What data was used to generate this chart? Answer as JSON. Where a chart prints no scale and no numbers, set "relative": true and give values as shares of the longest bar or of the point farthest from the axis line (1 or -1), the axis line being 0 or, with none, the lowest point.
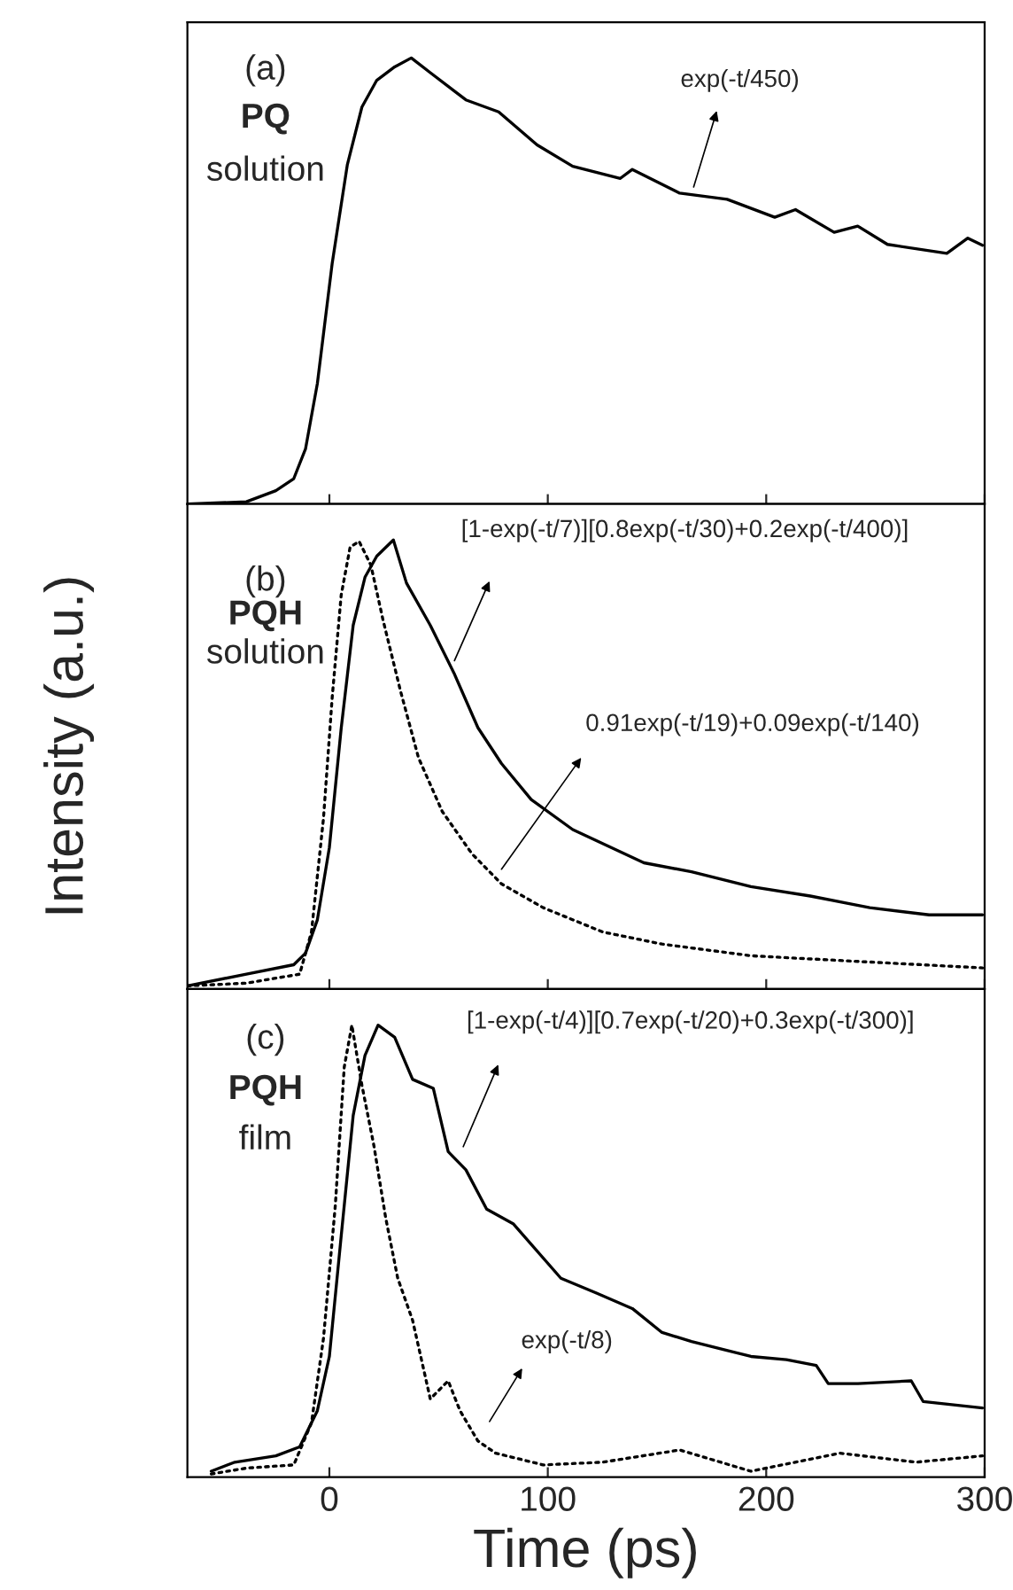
{
  "chart_data": [
    {
      "type": "line",
      "relative": true,
      "xlim": [
        -65,
        300
      ],
      "xticks": [
        0,
        100,
        200,
        300
      ],
      "tick_labels": false,
      "annotations": [
        "(a)",
        "PQ",
        "solution",
        "exp(-t/450)"
      ],
      "series": [
        {
          "color": "#000000",
          "line_style": "solid",
          "x": [
            -65,
            -38,
            -24.5,
            -16.3,
            -10.9,
            -5.5,
            1.3,
            8.2,
            14.9,
            21.7,
            29.9,
            37.5,
            46.2,
            62.5,
            77.5,
            95.1,
            111.4,
            133.2,
            138.7,
            160.4,
            182.1,
            203.9,
            213.4,
            231.1,
            241.9,
            255.5,
            282.7,
            292.3,
            299
          ],
          "values": [
            0,
            0.005,
            0.03,
            0.057,
            0.124,
            0.27,
            0.54,
            0.76,
            0.89,
            0.95,
            0.98,
            1,
            0.967,
            0.906,
            0.879,
            0.805,
            0.757,
            0.73,
            0.75,
            0.697,
            0.683,
            0.643,
            0.66,
            0.609,
            0.623,
            0.582,
            0.562,
            0.596,
            0.58
          ]
        }
      ]
    },
    {
      "type": "line",
      "relative": true,
      "xlim": [
        -65,
        300
      ],
      "xticks": [
        0,
        100,
        200,
        300
      ],
      "tick_labels": false,
      "ylabel": "Intensity (a.u.)",
      "annotations": [
        "(b)",
        "PQH",
        "solution",
        "[1-exp(-t/7)][0.8exp(-t/30)+0.2exp(-t/400)]",
        "0.91exp(-t/19)+0.09exp(-t/140)"
      ],
      "series": [
        {
          "color": "#000000",
          "line_style": "solid",
          "x": [
            -65,
            -38,
            -16.3,
            -10.9,
            -5.5,
            0,
            5.4,
            10.9,
            16.3,
            21.7,
            29.3,
            35.3,
            46.2,
            57.1,
            68,
            78.8,
            92.4,
            111.4,
            144,
            165.8,
            193,
            220.2,
            247.4,
            274.6,
            299
          ],
          "values": [
            0.007,
            0.033,
            0.054,
            0.08,
            0.154,
            0.315,
            0.58,
            0.81,
            0.917,
            0.964,
            1,
            0.904,
            0.81,
            0.703,
            0.582,
            0.502,
            0.422,
            0.355,
            0.281,
            0.261,
            0.228,
            0.207,
            0.181,
            0.165,
            0.165
          ]
        },
        {
          "color": "#000000",
          "line_style": "dotted",
          "x": [
            -65,
            -38,
            -13.6,
            -8.2,
            -2.7,
            1.3,
            5.4,
            9.5,
            13.6,
            19,
            24.5,
            32.6,
            40.8,
            51.7,
            65.3,
            78.8,
            97.9,
            125.1,
            152.3,
            193,
            247.4,
            299
          ],
          "values": [
            0.007,
            0.013,
            0.033,
            0.127,
            0.38,
            0.65,
            0.877,
            0.984,
            0.997,
            0.944,
            0.823,
            0.663,
            0.515,
            0.395,
            0.301,
            0.234,
            0.181,
            0.127,
            0.1,
            0.074,
            0.06,
            0.047
          ]
        }
      ]
    },
    {
      "type": "line",
      "relative": true,
      "xlim": [
        -65,
        300
      ],
      "xticks": [
        0,
        100,
        200,
        300
      ],
      "tick_labels": "x",
      "xlabel": "Time (ps)",
      "annotations": [
        "(c)",
        "PQH",
        "film",
        "[1-exp(-t/4)][0.7exp(-t/20)+0.3exp(-t/300)]",
        "exp(-t/8)"
      ],
      "series": [
        {
          "color": "#000000",
          "line_style": "solid",
          "x": [
            -54.1,
            -43.3,
            -24.5,
            -13.6,
            -5.5,
            0,
            5.4,
            10.9,
            16.3,
            22.3,
            29.9,
            38.1,
            47.6,
            54.4,
            62.5,
            72,
            84.3,
            106,
            122.3,
            138.7,
            152.3,
            165.8,
            193,
            209.3,
            222.9,
            228.4,
            242,
            266.4,
            271.9,
            299
          ],
          "values": [
            0.013,
            0.033,
            0.047,
            0.067,
            0.147,
            0.267,
            0.533,
            0.8,
            0.933,
            1,
            0.973,
            0.88,
            0.86,
            0.72,
            0.68,
            0.593,
            0.56,
            0.44,
            0.407,
            0.373,
            0.32,
            0.3,
            0.267,
            0.26,
            0.247,
            0.207,
            0.207,
            0.213,
            0.167,
            0.153
          ]
        },
        {
          "color": "#000000",
          "line_style": "dotted",
          "x": [
            -54.1,
            -37.8,
            -16.3,
            -8.2,
            -2.7,
            2.7,
            6.8,
            10.3,
            14.9,
            20.4,
            25.8,
            31.3,
            38.1,
            46.2,
            54.4,
            59.8,
            68,
            76.1,
            97.9,
            125.1,
            160.4,
            193,
            233.7,
            268.5,
            299
          ],
          "values": [
            0.007,
            0.02,
            0.027,
            0.12,
            0.307,
            0.6,
            0.907,
            1,
            0.867,
            0.733,
            0.573,
            0.44,
            0.347,
            0.173,
            0.213,
            0.147,
            0.08,
            0.053,
            0.027,
            0.033,
            0.06,
            0.013,
            0.053,
            0.033,
            0.047
          ]
        }
      ]
    }
  ]
}
